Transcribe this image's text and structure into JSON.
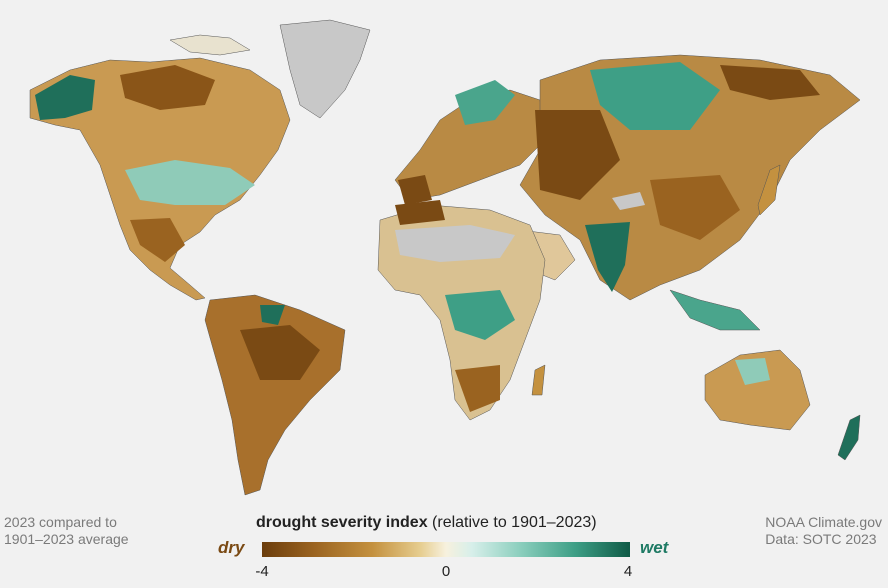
{
  "map": {
    "colors": {
      "ocean": "#f1f1f1",
      "no_data": "#c8c8c8",
      "very_dry": "#7a4a14",
      "dry": "#b98a44",
      "neutral": "#f7f1de",
      "wet": "#5fb7a0",
      "very_wet": "#0f5a46",
      "border": "#555555"
    }
  },
  "note_left": {
    "line1": "2023 compared to",
    "line2": "1901–2023 average"
  },
  "note_right": {
    "line1": "NOAA Climate.gov",
    "line2": "Data: SOTC 2023"
  },
  "legend": {
    "title_bold": "drought severity index",
    "title_rest": " (relative to 1901–2023)",
    "dry_label": "dry",
    "wet_label": "wet",
    "ticks": [
      "-4",
      "0",
      "4"
    ],
    "min": -4,
    "max": 4
  }
}
